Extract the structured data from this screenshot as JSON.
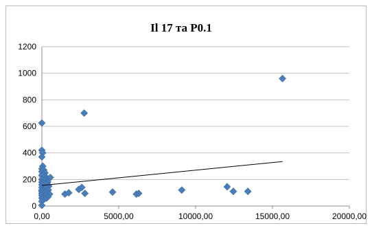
{
  "chart_data": {
    "type": "scatter",
    "title": "Il 17 та P0.1",
    "xlabel": "",
    "ylabel": "",
    "xlim": [
      0,
      20000
    ],
    "ylim": [
      0,
      1200
    ],
    "x_ticks": [
      0,
      5000,
      10000,
      15000,
      20000
    ],
    "x_tick_labels": [
      "0,00",
      "5000,00",
      "10000,00",
      "15000,00",
      "20000,00"
    ],
    "y_ticks": [
      0,
      200,
      400,
      600,
      800,
      1000,
      1200
    ],
    "y_tick_labels": [
      "0",
      "200",
      "400",
      "600",
      "800",
      "1000",
      "1200"
    ],
    "grid": "horizontal",
    "legend": "none",
    "marker_color": "#4a7ebb",
    "trendline": {
      "type": "linear",
      "x": [
        0,
        15650
      ],
      "y": [
        155,
        335
      ]
    },
    "series": [
      {
        "marker": "diamond",
        "points": [
          [
            0,
            625
          ],
          [
            0,
            420
          ],
          [
            50,
            400
          ],
          [
            0,
            370
          ],
          [
            60,
            300
          ],
          [
            0,
            280
          ],
          [
            130,
            270
          ],
          [
            0,
            260
          ],
          [
            200,
            250
          ],
          [
            60,
            240
          ],
          [
            0,
            230
          ],
          [
            250,
            220
          ],
          [
            80,
            210
          ],
          [
            0,
            200
          ],
          [
            320,
            200
          ],
          [
            150,
            190
          ],
          [
            0,
            180
          ],
          [
            380,
            180
          ],
          [
            60,
            170
          ],
          [
            250,
            165
          ],
          [
            0,
            160
          ],
          [
            450,
            150
          ],
          [
            120,
            150
          ],
          [
            0,
            140
          ],
          [
            300,
            140
          ],
          [
            180,
            130
          ],
          [
            0,
            120
          ],
          [
            420,
            120
          ],
          [
            100,
            115
          ],
          [
            0,
            110
          ],
          [
            260,
            105
          ],
          [
            160,
            100
          ],
          [
            0,
            95
          ],
          [
            350,
            95
          ],
          [
            500,
            90
          ],
          [
            80,
            85
          ],
          [
            0,
            80
          ],
          [
            220,
            80
          ],
          [
            400,
            70
          ],
          [
            120,
            65
          ],
          [
            0,
            60
          ],
          [
            300,
            60
          ],
          [
            180,
            55
          ],
          [
            60,
            45
          ],
          [
            0,
            35
          ],
          [
            0,
            5
          ],
          [
            550,
            215
          ],
          [
            1500,
            90
          ],
          [
            1750,
            100
          ],
          [
            2400,
            125
          ],
          [
            2600,
            140
          ],
          [
            2800,
            95
          ],
          [
            2750,
            700
          ],
          [
            4600,
            105
          ],
          [
            6150,
            90
          ],
          [
            6300,
            95
          ],
          [
            9100,
            120
          ],
          [
            12050,
            145
          ],
          [
            12450,
            110
          ],
          [
            13400,
            110
          ],
          [
            15650,
            960
          ]
        ]
      }
    ]
  }
}
